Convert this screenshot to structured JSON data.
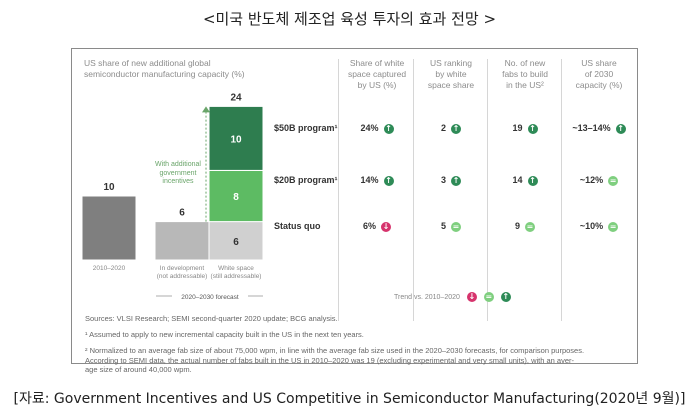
{
  "page_title": "<미국 반도체 제조업 육성 투자의 효과 전망 >",
  "caption": "[자료: Government Incentives and US Competitive in Semiconductor Manufacturing(2020년 9월)]",
  "colors": {
    "dark_gray": "#7f7f7f",
    "light_gray": "#b8b8b8",
    "white_space_gray": "#d0d0d0",
    "green_light": "#5dbb63",
    "green_dark": "#2e7d4f",
    "trend_up": "#2e8b57",
    "trend_flat": "#7fcf7f",
    "trend_down": "#d6336c"
  },
  "chart_header": [
    "US share of new additional global",
    "semiconductor manufacturing capacity (%)"
  ],
  "annotation": [
    "With additional",
    "government",
    "incentives"
  ],
  "forecast_label": "2020–2030 forecast",
  "table": {
    "columns": [
      [
        "Share of white",
        "space captured",
        "by US (%)"
      ],
      [
        "US ranking",
        "by white",
        "space share"
      ],
      [
        "No. of new",
        "fabs to build",
        "in the US²"
      ],
      [
        "US share",
        "of 2030",
        "capacity (%)"
      ]
    ],
    "rows": [
      {
        "label": "$50B program¹",
        "cells": [
          {
            "text": "24%",
            "trend": "up"
          },
          {
            "text": "2",
            "trend": "up"
          },
          {
            "text": "19",
            "trend": "up"
          },
          {
            "text": "~13–14%",
            "trend": "up"
          }
        ]
      },
      {
        "label": "$20B program¹",
        "cells": [
          {
            "text": "14%",
            "trend": "up"
          },
          {
            "text": "3",
            "trend": "up"
          },
          {
            "text": "14",
            "trend": "up"
          },
          {
            "text": "~12%",
            "trend": "flat"
          }
        ]
      },
      {
        "label": "Status quo",
        "cells": [
          {
            "text": "6%",
            "trend": "down"
          },
          {
            "text": "5",
            "trend": "flat"
          },
          {
            "text": "9",
            "trend": "flat"
          },
          {
            "text": "~10%",
            "trend": "flat"
          }
        ]
      }
    ],
    "trend_legend": "Trend vs. 2010–2020"
  },
  "trend_icons": {
    "up": "↑",
    "flat": "=",
    "down": "↓"
  },
  "footnotes": [
    "Sources: VLSI Research; SEMI second-quarter 2020 update; BCG analysis.",
    "¹ Assumed to apply to new incremental capacity built in the US in the next ten years.",
    "² Normalized to an average fab size of about 75,000 wpm, in line with the average fab size used in the 2020–2030 forecasts, for comparison purposes.",
    "According to SEMI data, the actual number of fabs built in the US in 2010–2020 was 19 (excluding experimental and very small units), with an aver-",
    "age size of around 40,000 wpm."
  ],
  "chart_data": {
    "type": "bar",
    "ylabel": "US share of new additional global semiconductor manufacturing capacity (%)",
    "categories": [
      "2010–2020",
      "In development (not addressable)",
      "White space (still addressable)"
    ],
    "bars": [
      {
        "category": "2010–2020",
        "total_label": "10",
        "segments": [
          {
            "value": 10,
            "color": "#7f7f7f",
            "label": ""
          }
        ]
      },
      {
        "category": "In development (not addressable)",
        "total_label": "6",
        "segments": [
          {
            "value": 6,
            "color": "#b8b8b8",
            "label": ""
          }
        ]
      },
      {
        "category": "White space (still addressable)",
        "total_label": "24",
        "segments": [
          {
            "value": 6,
            "color": "#d0d0d0",
            "label": "6"
          },
          {
            "value": 8,
            "color": "#5dbb63",
            "label": "8"
          },
          {
            "value": 10,
            "color": "#2e7d4f",
            "label": "10"
          }
        ]
      }
    ],
    "category_label_lines": [
      [
        "2010–2020"
      ],
      [
        "In development",
        "(not addressable)"
      ],
      [
        "White space",
        "(still addressable)"
      ]
    ],
    "ylim": [
      0,
      24
    ]
  }
}
